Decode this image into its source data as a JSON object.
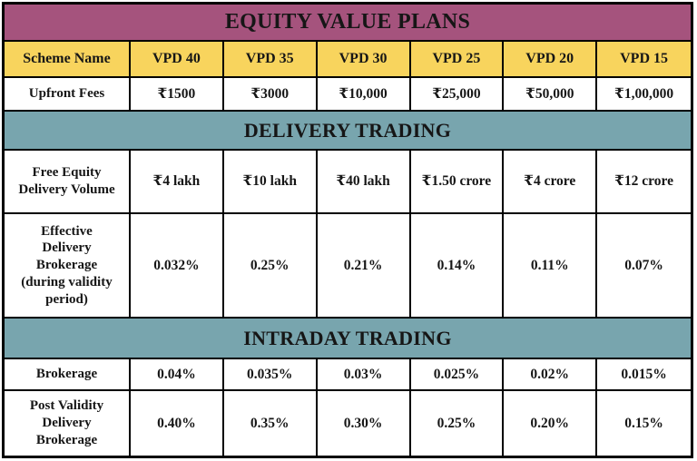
{
  "title": "EQUITY VALUE PLANS",
  "colors": {
    "title_bg": "#a5537d",
    "header_bg": "#f8d45d",
    "section_bg": "#78a5ae",
    "border": "#000000",
    "text": "#161616",
    "cell_bg": "#ffffff"
  },
  "scheme_header": {
    "label": "Scheme Name",
    "plans": [
      "VPD 40",
      "VPD 35",
      "VPD 30",
      "VPD 25",
      "VPD 20",
      "VPD 15"
    ]
  },
  "upfront_fees": {
    "label": "Upfront Fees",
    "values": [
      "₹1500",
      "₹3000",
      "₹10,000",
      "₹25,000",
      "₹50,000",
      "₹1,00,000"
    ]
  },
  "delivery_section": {
    "title": "DELIVERY TRADING",
    "rows": [
      {
        "label": "Free Equity Delivery Volume",
        "values": [
          "₹4 lakh",
          "₹10 lakh",
          "₹40 lakh",
          "₹1.50 crore",
          "₹4 crore",
          "₹12 crore"
        ]
      },
      {
        "label": "Effective Delivery Brokerage (during validity period)",
        "values": [
          "0.032%",
          "0.25%",
          "0.21%",
          "0.14%",
          "0.11%",
          "0.07%"
        ]
      }
    ]
  },
  "intraday_section": {
    "title": "INTRADAY TRADING",
    "rows": [
      {
        "label": "Brokerage",
        "values": [
          "0.04%",
          "0.035%",
          "0.03%",
          "0.025%",
          "0.02%",
          "0.015%"
        ]
      },
      {
        "label": "Post Validity Delivery Brokerage",
        "values": [
          "0.40%",
          "0.35%",
          "0.30%",
          "0.25%",
          "0.20%",
          "0.15%"
        ]
      }
    ]
  },
  "chart_data": {
    "type": "table",
    "title": "EQUITY VALUE PLANS",
    "columns": [
      "Scheme Name",
      "VPD 40",
      "VPD 35",
      "VPD 30",
      "VPD 25",
      "VPD 20",
      "VPD 15"
    ],
    "sections": [
      {
        "header": "",
        "rows": [
          [
            "Upfront Fees",
            "₹1500",
            "₹3000",
            "₹10,000",
            "₹25,000",
            "₹50,000",
            "₹1,00,000"
          ]
        ]
      },
      {
        "header": "DELIVERY TRADING",
        "rows": [
          [
            "Free Equity Delivery Volume",
            "₹4 lakh",
            "₹10 lakh",
            "₹40 lakh",
            "₹1.50 crore",
            "₹4 crore",
            "₹12 crore"
          ],
          [
            "Effective Delivery Brokerage (during validity period)",
            "0.032%",
            "0.25%",
            "0.21%",
            "0.14%",
            "0.11%",
            "0.07%"
          ]
        ]
      },
      {
        "header": "INTRADAY TRADING",
        "rows": [
          [
            "Brokerage",
            "0.04%",
            "0.035%",
            "0.03%",
            "0.025%",
            "0.02%",
            "0.015%"
          ],
          [
            "Post Validity Delivery Brokerage",
            "0.40%",
            "0.35%",
            "0.30%",
            "0.25%",
            "0.20%",
            "0.15%"
          ]
        ]
      }
    ]
  }
}
